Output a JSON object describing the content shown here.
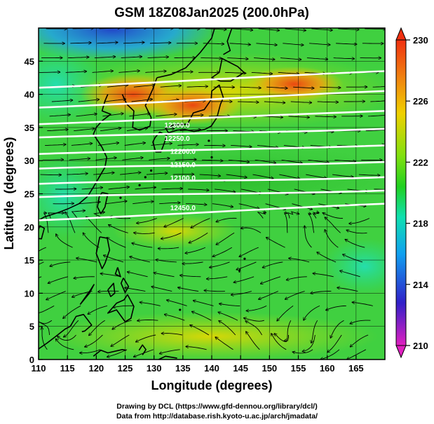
{
  "chart_data": {
    "type": "heatmap",
    "title": "GSM 18Z08Jan2025 (200.0hPa)",
    "xlabel": "Longitude (degrees)",
    "ylabel": "Latitude  (degrees)",
    "xlim": [
      110,
      170
    ],
    "ylim": [
      0,
      50
    ],
    "xticks": [
      110,
      115,
      120,
      125,
      130,
      135,
      140,
      145,
      150,
      155,
      160,
      165
    ],
    "yticks": [
      0,
      5,
      10,
      15,
      20,
      25,
      30,
      35,
      40,
      45
    ],
    "colorbar": {
      "min": 210,
      "max": 230,
      "ticks": [
        210,
        214,
        218,
        222,
        226,
        230
      ],
      "colors": [
        "#e020c0",
        "#2020c0",
        "#10a0f0",
        "#10e0a0",
        "#20d020",
        "#80e010",
        "#f0d000",
        "#f08010",
        "#f03010"
      ]
    },
    "contour_labels": [
      {
        "text": "12300.0",
        "lon": 134,
        "lat": 35
      },
      {
        "text": "12250.0",
        "lon": 134,
        "lat": 33
      },
      {
        "text": "12200.0",
        "lon": 135,
        "lat": 31
      },
      {
        "text": "12150.0",
        "lon": 135,
        "lat": 29
      },
      {
        "text": "12100.0",
        "lon": 135,
        "lat": 27
      },
      {
        "text": "12450.0",
        "lon": 135,
        "lat": 22.5
      }
    ],
    "contours": [
      {
        "lat0": 41.0,
        "lat1": 43.5
      },
      {
        "lat0": 38.0,
        "lat1": 40.5
      },
      {
        "lat0": 35.5,
        "lat1": 37.5
      },
      {
        "lat0": 33.5,
        "lat1": 34.8
      },
      {
        "lat0": 31.0,
        "lat1": 32.3
      },
      {
        "lat0": 28.8,
        "lat1": 29.8
      },
      {
        "lat0": 26.5,
        "lat1": 27.5
      },
      {
        "lat0": 24.5,
        "lat1": 25.5
      },
      {
        "lat0": 21.0,
        "lat1": 23.5
      }
    ]
  },
  "credits": {
    "line1": "Drawing by DCL (https://www.gfd-dennou.org/library/dcl/)",
    "line2": "Data from http://database.rish.kyoto-u.ac.jp/arch/jmadata/"
  }
}
